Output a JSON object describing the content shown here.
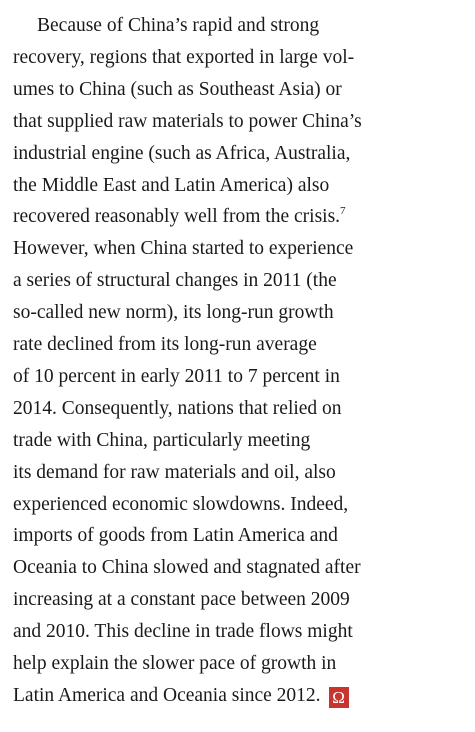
{
  "paragraph": {
    "lines": [
      "Because of China’s rapid and strong",
      "recovery, regions that exported in large vol-",
      "umes to China (such as Southeast Asia) or",
      "that supplied raw materials to power China’s",
      "industrial engine (such as Africa, Australia,",
      "the Middle East and Latin America) also",
      "recovered reasonably well from the crisis.",
      "However, when China started to experience",
      "a series of structural changes in 2011 (the",
      "so-called new norm), its long-run growth",
      "rate declined from its long-run average",
      "of 10 percent in early 2011 to 7 percent in",
      "2014. Consequently, nations that relied on",
      "trade with China, particularly meeting",
      "its demand for raw materials and oil, also",
      "experienced economic slowdowns. Indeed,",
      "imports of goods from Latin America and",
      "Oceania to China slowed and stagnated after",
      "increasing at a constant pace between 2009",
      "and 2010. This decline in trade flows might",
      "help explain the slower pace of growth in",
      "Latin America and Oceania since 2012."
    ],
    "footnote_line": 6,
    "footnote": "7",
    "end_mark": "Ω"
  }
}
